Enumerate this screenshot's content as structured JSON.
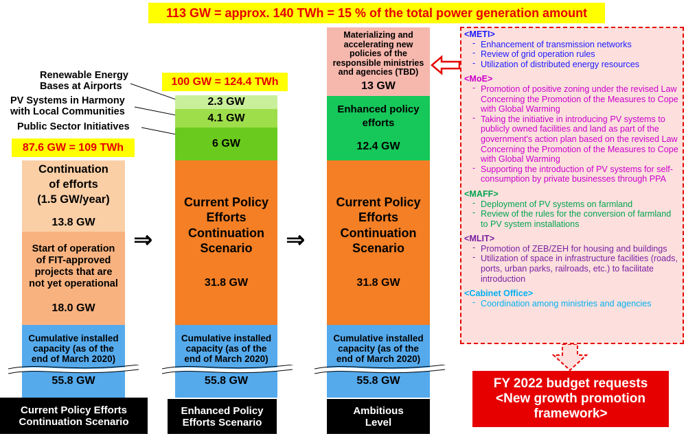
{
  "header": {
    "text": "113 GW = approx. 140 TWh = 15 % of the total power generation amount"
  },
  "col1": {
    "total": "87.6 GW = 109 TWh",
    "seg_top": {
      "lines": [
        "Continuation",
        "of efforts",
        "(1.5 GW/year)"
      ],
      "value": "13.8 GW"
    },
    "seg_mid": {
      "lines": [
        "Start of operation",
        "of FIT-approved",
        "projects that are",
        "not yet operational"
      ],
      "value": "18.0 GW"
    },
    "seg_base": {
      "lines": [
        "Cumulative installed",
        "capacity (as of the",
        "end of March 2020)"
      ],
      "value": "55.8 GW"
    },
    "caption": [
      "Current Policy  Efforts",
      "Continuation  Scenario"
    ]
  },
  "labels": {
    "airports": [
      "Renewable Energy",
      "Bases at Airports"
    ],
    "communities": [
      "PV Systems in Harmony",
      "with Local Communities"
    ],
    "public": "Public Sector Initiatives"
  },
  "col2": {
    "total": "100 GW = 124.4 TWh",
    "seg_a": "2.3 GW",
    "seg_b": "4.1 GW",
    "seg_c": "6 GW",
    "seg_main": {
      "lines": [
        "Current Policy",
        "Efforts",
        "Continuation",
        "Scenario"
      ],
      "value": "31.8 GW"
    },
    "seg_base": {
      "lines": [
        "Cumulative installed",
        "capacity (as of the",
        "end of March 2020)"
      ],
      "value": "55.8 GW"
    },
    "caption": [
      "Enhanced  Policy",
      "Efforts  Scenario"
    ]
  },
  "col3": {
    "seg_top": {
      "lines": [
        "Materializing and",
        "accelerating new",
        "policies of the",
        "responsible ministries",
        "and agencies (TBD)"
      ],
      "value": "13 GW"
    },
    "seg_enh": {
      "lines": [
        "Enhanced  policy",
        "efforts"
      ],
      "value": "12.4 GW"
    },
    "seg_main": {
      "lines": [
        "Current Policy",
        "Efforts",
        "Continuation",
        "Scenario"
      ],
      "value": "31.8 GW"
    },
    "seg_base": {
      "lines": [
        "Cumulative installed",
        "capacity (as of the",
        "end of March 2020)"
      ],
      "value": "55.8 GW"
    },
    "caption": [
      "Ambitious",
      "Level"
    ]
  },
  "arrows": {
    "symbol": "⇒"
  },
  "panel": {
    "meti": {
      "title": "<METI>",
      "items": [
        "Enhancement of transmission networks",
        "Review of grid operation rules",
        "Utilization  of distributed energy resources"
      ]
    },
    "moe": {
      "title": "<MoE>",
      "items": [
        "Promotion of positive zoning under the revised Law Concerning the Promotion of the Measures to Cope with  Global Warming",
        "Taking the initiative in introducing PV systems to publicly owned facilities and land as part of the government's action plan based on the revised Law Concerning the Promotion of the Measures to Cope with  Global Warming",
        "Supporting the introduction of PV systems for self-consumption by private businesses through PPA"
      ]
    },
    "maff": {
      "title": "<MAFF>",
      "items": [
        "Deployment of PV systems on farmland",
        "Review of the rules for the conversion of farmland to PV system installations"
      ]
    },
    "mlit": {
      "title": "<MLIT>",
      "items": [
        "Promotion of ZEB/ZEH  for housing and buildings",
        "Utilization  of space in infrastructure facilities (roads, ports, urban parks, railroads, etc.) to facilitate introduction"
      ]
    },
    "cabinet": {
      "title": "<Cabinet Office>",
      "items": [
        "Coordination among ministries and agencies"
      ]
    }
  },
  "budget": {
    "lines": [
      "FY 2022 budget requests",
      "<New growth promotion",
      "framework>"
    ]
  },
  "colors": {
    "peach": "#fbcfa6",
    "orange_light": "#f8b27f",
    "orange": "#f47f25",
    "blue": "#55aaec",
    "green_pale": "#c9ef9a",
    "green_light": "#9ede4b",
    "green": "#6acb1e",
    "green_enh": "#15c859",
    "pink": "#f6b7ad",
    "red": "#e60000",
    "yellow": "#ffff00",
    "meti": "#1a1aff",
    "moe": "#cc00cc",
    "maff": "#00a550",
    "mlit": "#7a1fa2",
    "cabinet": "#00b0f0"
  }
}
